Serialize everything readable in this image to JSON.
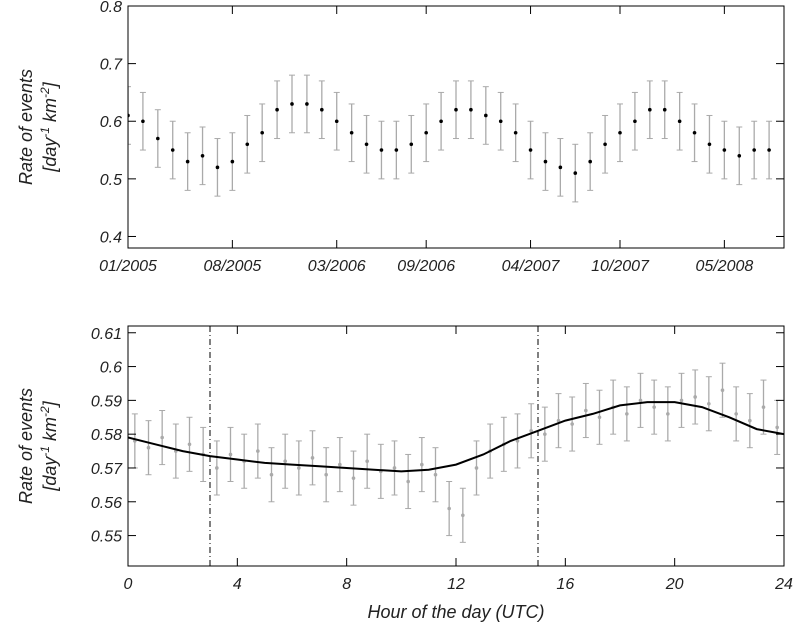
{
  "chart_data": [
    {
      "type": "errorbar",
      "ylabel": "Rate of events",
      "yunits": [
        {
          "text": "[day"
        },
        {
          "text": "-1",
          "sup": true
        },
        {
          "text": " km"
        },
        {
          "text": "-2",
          "sup": true
        },
        {
          "text": "]"
        }
      ],
      "x": [
        "2005-01",
        "2005-02",
        "2005-03",
        "2005-04",
        "2005-05",
        "2005-06",
        "2005-07",
        "2005-08",
        "2005-09",
        "2005-10",
        "2005-11",
        "2005-12",
        "2006-01",
        "2006-02",
        "2006-03",
        "2006-04",
        "2006-05",
        "2006-06",
        "2006-07",
        "2006-08",
        "2006-09",
        "2006-10",
        "2006-11",
        "2006-12",
        "2007-01",
        "2007-02",
        "2007-03",
        "2007-04",
        "2007-05",
        "2007-06",
        "2007-07",
        "2007-08",
        "2007-09",
        "2007-10",
        "2007-11",
        "2007-12",
        "2008-01",
        "2008-02",
        "2008-03",
        "2008-04",
        "2008-05",
        "2008-06",
        "2008-07",
        "2008-08"
      ],
      "values": [
        0.61,
        0.6,
        0.57,
        0.55,
        0.53,
        0.54,
        0.52,
        0.53,
        0.56,
        0.58,
        0.62,
        0.63,
        0.63,
        0.62,
        0.6,
        0.58,
        0.56,
        0.55,
        0.55,
        0.56,
        0.58,
        0.6,
        0.62,
        0.62,
        0.61,
        0.6,
        0.58,
        0.55,
        0.53,
        0.52,
        0.51,
        0.53,
        0.56,
        0.58,
        0.6,
        0.62,
        0.62,
        0.6,
        0.58,
        0.56,
        0.55,
        0.54,
        0.55,
        0.55
      ],
      "errors": [
        0.05,
        0.05,
        0.05,
        0.05,
        0.05,
        0.05,
        0.05,
        0.05,
        0.05,
        0.05,
        0.05,
        0.05,
        0.05,
        0.05,
        0.05,
        0.05,
        0.05,
        0.05,
        0.05,
        0.05,
        0.05,
        0.05,
        0.05,
        0.05,
        0.05,
        0.05,
        0.05,
        0.05,
        0.05,
        0.05,
        0.05,
        0.05,
        0.05,
        0.05,
        0.05,
        0.05,
        0.05,
        0.05,
        0.05,
        0.05,
        0.05,
        0.05,
        0.05,
        0.05
      ],
      "color": "#000000",
      "error_color": "#aaaaaa",
      "xlim": [
        "2005-01",
        "2008-09"
      ],
      "xticks": [
        {
          "value": "2005-01",
          "label": "01/2005"
        },
        {
          "value": "2005-08",
          "label": "08/2005"
        },
        {
          "value": "2006-03",
          "label": "03/2006"
        },
        {
          "value": "2006-09",
          "label": "09/2006"
        },
        {
          "value": "2007-04",
          "label": "04/2007"
        },
        {
          "value": "2007-10",
          "label": "10/2007"
        },
        {
          "value": "2008-05",
          "label": "05/2008"
        }
      ],
      "ylim": [
        0.38,
        0.8
      ],
      "yticks": [
        0.4,
        0.5,
        0.6,
        0.7,
        0.8
      ]
    },
    {
      "type": "errorbar",
      "xlabel": "Hour of the day (UTC)",
      "ylabel": "Rate of events",
      "yunits": [
        {
          "text": "[day"
        },
        {
          "text": "-1",
          "sup": true
        },
        {
          "text": " km"
        },
        {
          "text": "-2",
          "sup": true
        },
        {
          "text": "]"
        }
      ],
      "x": [
        0.25,
        0.75,
        1.25,
        1.75,
        2.25,
        2.75,
        3.25,
        3.75,
        4.25,
        4.75,
        5.25,
        5.75,
        6.25,
        6.75,
        7.25,
        7.75,
        8.25,
        8.75,
        9.25,
        9.75,
        10.25,
        10.75,
        11.25,
        11.75,
        12.25,
        12.75,
        13.25,
        13.75,
        14.25,
        14.75,
        15.25,
        15.75,
        16.25,
        16.75,
        17.25,
        17.75,
        18.25,
        18.75,
        19.25,
        19.75,
        20.25,
        20.75,
        21.25,
        21.75,
        22.25,
        22.75,
        23.25,
        23.75
      ],
      "values": [
        0.578,
        0.576,
        0.579,
        0.575,
        0.577,
        0.574,
        0.57,
        0.574,
        0.572,
        0.575,
        0.568,
        0.572,
        0.57,
        0.573,
        0.568,
        0.571,
        0.567,
        0.572,
        0.569,
        0.57,
        0.566,
        0.571,
        0.568,
        0.558,
        0.556,
        0.57,
        0.575,
        0.577,
        0.578,
        0.581,
        0.58,
        0.584,
        0.583,
        0.587,
        0.585,
        0.588,
        0.586,
        0.59,
        0.588,
        0.586,
        0.59,
        0.591,
        0.589,
        0.593,
        0.586,
        0.584,
        0.588,
        0.582
      ],
      "errors": [
        0.008,
        0.008,
        0.008,
        0.008,
        0.008,
        0.008,
        0.008,
        0.008,
        0.008,
        0.008,
        0.008,
        0.008,
        0.008,
        0.008,
        0.008,
        0.008,
        0.008,
        0.008,
        0.008,
        0.008,
        0.008,
        0.008,
        0.008,
        0.008,
        0.008,
        0.008,
        0.008,
        0.008,
        0.008,
        0.008,
        0.008,
        0.008,
        0.008,
        0.008,
        0.008,
        0.008,
        0.008,
        0.008,
        0.008,
        0.008,
        0.008,
        0.008,
        0.008,
        0.008,
        0.008,
        0.008,
        0.008,
        0.008
      ],
      "color": "#aaaaaa",
      "error_color": "#aaaaaa",
      "curve": {
        "x": [
          0,
          1,
          2,
          3,
          4,
          5,
          6,
          7,
          8,
          9,
          10,
          11,
          12,
          13,
          14,
          15,
          16,
          17,
          18,
          19,
          20,
          21,
          22,
          23,
          24
        ],
        "values": [
          0.579,
          0.577,
          0.575,
          0.5735,
          0.5725,
          0.5715,
          0.571,
          0.5705,
          0.57,
          0.5695,
          0.569,
          0.5695,
          0.571,
          0.574,
          0.578,
          0.581,
          0.584,
          0.586,
          0.5885,
          0.5895,
          0.5895,
          0.588,
          0.585,
          0.5815,
          0.58
        ],
        "color": "#000000"
      },
      "vlines": [
        3,
        15
      ],
      "xlim": [
        0,
        24
      ],
      "xticks": [
        0,
        4,
        8,
        12,
        16,
        20,
        24
      ],
      "ylim": [
        0.541,
        0.612
      ],
      "yticks": [
        0.55,
        0.56,
        0.57,
        0.58,
        0.59,
        0.6,
        0.61
      ]
    }
  ]
}
